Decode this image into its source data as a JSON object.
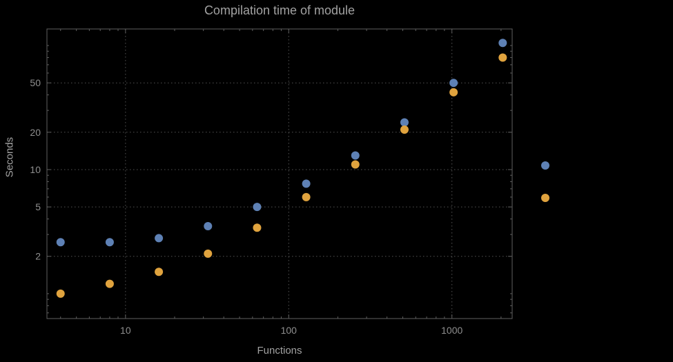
{
  "window": {
    "background": "#000000"
  },
  "styles": {
    "text_color": "#a2a2a2",
    "tick_label_color": "#8f8f8f",
    "frame_color": "#606060",
    "grid_color": "#555555"
  },
  "chart_data": {
    "type": "scatter",
    "title": "Compilation time of module",
    "xlabel": "Functions",
    "ylabel": "Seconds",
    "x_scale": "log",
    "y_scale": "log",
    "xlim": [
      3.3,
      2340
    ],
    "ylim": [
      0.63,
      136
    ],
    "x_ticks": [
      10,
      100,
      1000
    ],
    "x_tick_labels": [
      "10",
      "100",
      "1000"
    ],
    "y_ticks": [
      2,
      5,
      10,
      20,
      50
    ],
    "y_tick_labels": [
      "2",
      "5",
      "10",
      "20",
      "50"
    ],
    "x_minor_ticks": [
      4,
      5,
      6,
      7,
      8,
      9,
      20,
      30,
      40,
      50,
      60,
      70,
      80,
      90,
      200,
      300,
      400,
      500,
      600,
      700,
      800,
      900,
      2000
    ],
    "y_minor_ticks": [
      0.7,
      0.8,
      0.9,
      1,
      3,
      4,
      6,
      7,
      8,
      9,
      30,
      40,
      60,
      70,
      80,
      90,
      100
    ],
    "grid": "dotted",
    "legend_position": "right-center",
    "x": [
      4,
      8,
      16,
      32,
      64,
      128,
      256,
      512,
      1024,
      2048
    ],
    "series": [
      {
        "name": "",
        "color": "#5e81b5",
        "values": [
          2.6,
          2.6,
          2.8,
          3.5,
          5.0,
          7.7,
          13,
          24,
          50,
          105
        ]
      },
      {
        "name": "",
        "color": "#e0a33e",
        "values": [
          1.0,
          1.2,
          1.5,
          2.1,
          3.4,
          6.0,
          11,
          21,
          42,
          80
        ]
      }
    ]
  }
}
